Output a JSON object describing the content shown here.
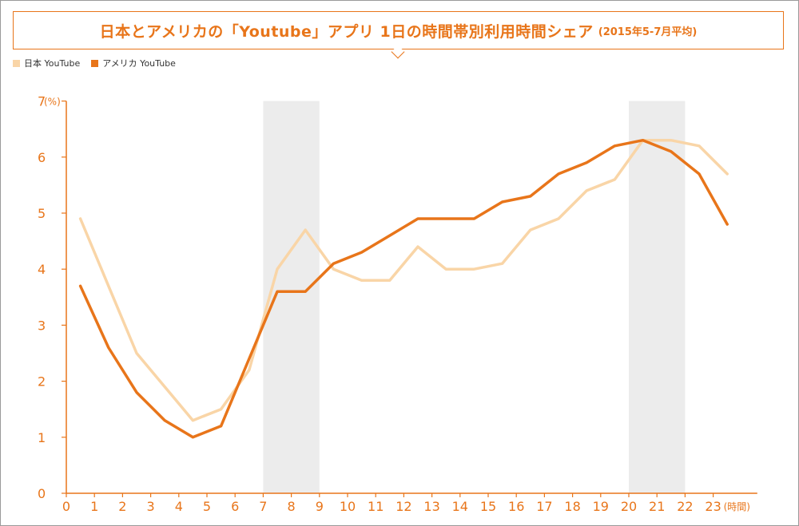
{
  "title": {
    "main": "日本とアメリカの「Youtube」アプリ 1日の時間帯別利用時間シェア",
    "sub": "(2015年5-7月平均)"
  },
  "colors": {
    "japan": "#f9d5a7",
    "usa": "#e8751a",
    "axis": "#e8751a",
    "highlight": "#ececec"
  },
  "chart_data": {
    "type": "line",
    "title": "日本とアメリカの「Youtube」アプリ 1日の時間帯別利用時間シェア",
    "subtitle": "(2015年5-7月平均)",
    "ylabel_unit": "(%)",
    "xlabel_unit": "(時間)",
    "xlim": [
      0,
      24
    ],
    "ylim": [
      0,
      7
    ],
    "x_ticks": [
      "0",
      "1",
      "2",
      "3",
      "4",
      "5",
      "6",
      "7",
      "8",
      "9",
      "10",
      "11",
      "12",
      "13",
      "14",
      "15",
      "16",
      "17",
      "18",
      "19",
      "20",
      "21",
      "22",
      "23"
    ],
    "y_ticks": [
      "0",
      "1",
      "2",
      "3",
      "4",
      "5",
      "6",
      "7"
    ],
    "highlight_bands": [
      [
        7,
        9
      ],
      [
        20,
        22
      ]
    ],
    "legend_position": "top-left",
    "grid": false,
    "series": [
      {
        "name": "日本 YouTube",
        "x": [
          0.5,
          1.5,
          2.5,
          3.5,
          4.5,
          5.5,
          6.5,
          7.5,
          8.5,
          9.5,
          10.5,
          11.5,
          12.5,
          13.5,
          14.5,
          15.5,
          16.5,
          17.5,
          18.5,
          19.5,
          20.5,
          21.5,
          22.5,
          23.5
        ],
        "values": [
          4.9,
          3.7,
          2.5,
          1.9,
          1.3,
          1.5,
          2.2,
          4.0,
          4.7,
          4.0,
          3.8,
          3.8,
          4.4,
          4.0,
          4.0,
          4.1,
          4.7,
          4.9,
          5.4,
          5.6,
          6.3,
          6.3,
          6.2,
          5.7
        ]
      },
      {
        "name": "アメリカ YouTube",
        "x": [
          0.5,
          1.5,
          2.5,
          3.5,
          4.5,
          5.5,
          6.5,
          7.5,
          8.5,
          9.5,
          10.5,
          11.5,
          12.5,
          13.5,
          14.5,
          15.5,
          16.5,
          17.5,
          18.5,
          19.5,
          20.5,
          21.5,
          22.5,
          23.5
        ],
        "values": [
          3.7,
          2.6,
          1.8,
          1.3,
          1.0,
          1.2,
          2.4,
          3.6,
          3.6,
          4.1,
          4.3,
          4.6,
          4.9,
          4.9,
          4.9,
          5.2,
          5.3,
          5.7,
          5.9,
          6.2,
          6.3,
          6.1,
          5.7,
          4.8
        ]
      }
    ]
  }
}
